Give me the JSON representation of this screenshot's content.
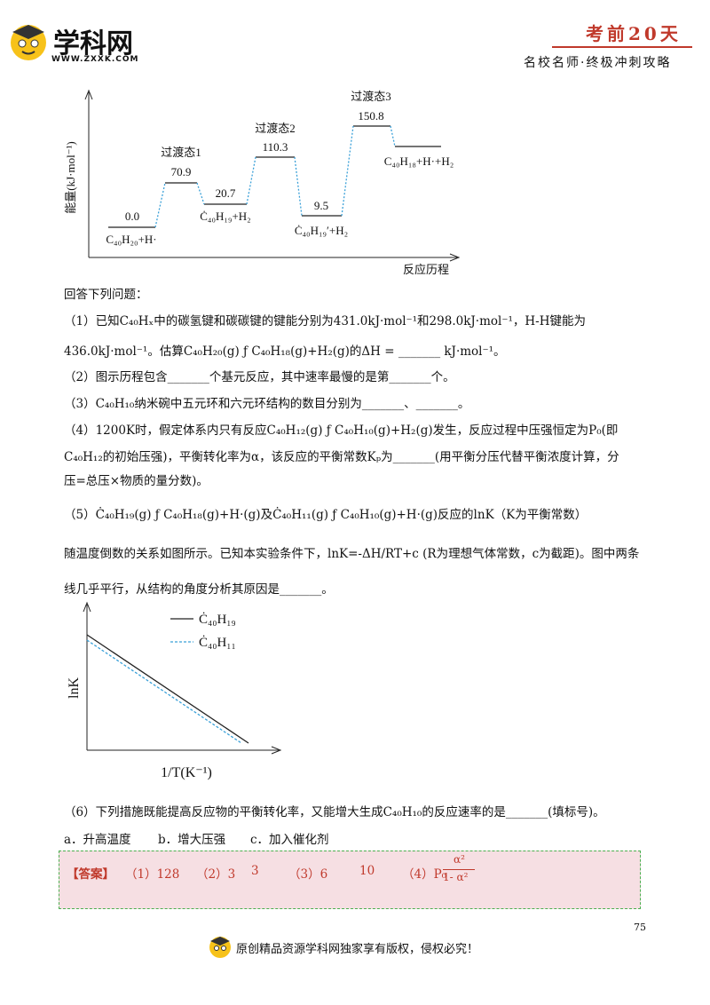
{
  "header": {
    "logo_text": "学科网",
    "logo_url": "WWW.ZXXK.COM",
    "tag": "考前20天",
    "subtitle": "名校名师·终极冲刺攻略"
  },
  "energy_diagram": {
    "y_label": "能量(kJ·mol⁻¹)",
    "x_label": "反应历程",
    "levels": [
      {
        "value": "0.0",
        "species": "C₄₀H₂₀+H·"
      },
      {
        "value": "70.9",
        "state": "过渡态1"
      },
      {
        "value": "20.7",
        "species": "Ċ₄₀H₁₉+H₂"
      },
      {
        "value": "110.3",
        "state": "过渡态2"
      },
      {
        "value": "9.5",
        "species": "Ċ₄₀H₁₉′+H₂"
      },
      {
        "value": "150.8",
        "state": "过渡态3"
      },
      {
        "species": "C₄₀H₁₈+H·+H₂"
      }
    ]
  },
  "questions": {
    "intro": "回答下列问题：",
    "q1": [
      "（1）已知C₄₀Hₓ中的碳氢键和碳碳键的键能分别为431.0kJ·mol⁻¹和298.0kJ·mol⁻¹，H-H键能为",
      "436.0kJ·mol⁻¹。估算C₄₀H₂₀(g) ƒ  C₄₀H₁₈(g)+H₂(g)的ΔH = _______ kJ·mol⁻¹。"
    ],
    "q2": [
      "（2）图示历程包含_______个基元反应，其中速率最慢的是第_______个。"
    ],
    "q3": [
      "（3）C₄₀H₁₀纳米碗中五元环和六元环结构的数目分别为_______、_______。"
    ],
    "q4": [
      "（4）1200K时，假定体系内只有反应C₄₀H₁₂(g) ƒ  C₄₀H₁₀(g)+H₂(g)发生，反应过程中压强恒定为P₀(即",
      "C₄₀H₁₂的初始压强)，平衡转化率为α，该反应的平衡常数Kₚ为_______(用平衡分压代替平衡浓度计算，分",
      "压=总压×物质的量分数)。"
    ],
    "q5": [
      "（5）Ċ₄₀H₁₉(g) ƒ  C₄₀H₁₈(g)+H·(g)及Ċ₄₀H₁₁(g) ƒ  C₄₀H₁₀(g)+H·(g)反应的lnK（K为平衡常数）",
      "随温度倒数的关系如图所示。已知本实验条件下，lnK=-ΔH/RT+c (R为理想气体常数，c为截距)。图中两条",
      "线几乎平行，从结构的角度分析其原因是_______。"
    ],
    "q6": [
      "（6）下列措施既能提高反应物的平衡转化率，又能增大生成C₄₀H₁₀的反应速率的是_______(填标号)。"
    ],
    "options": [
      "a．升高温度",
      "b．增大压强",
      "c．加入催化剂"
    ]
  },
  "lnk_diagram": {
    "y_label": "lnK",
    "x_label": "1/T(K⁻¹)",
    "legend": [
      "Ċ₄₀H₁₉",
      "Ċ₄₀H₁₁"
    ]
  },
  "answer": {
    "label": "【答案】",
    "items": [
      "（1）128",
      "（2）3",
      "3",
      "（3）6",
      "10",
      "（4）P₀",
      "α²",
      "1- α²"
    ]
  },
  "footer": {
    "page_number": "75",
    "text": "原创精品资源学科网独家享有版权，侵权必究！"
  }
}
